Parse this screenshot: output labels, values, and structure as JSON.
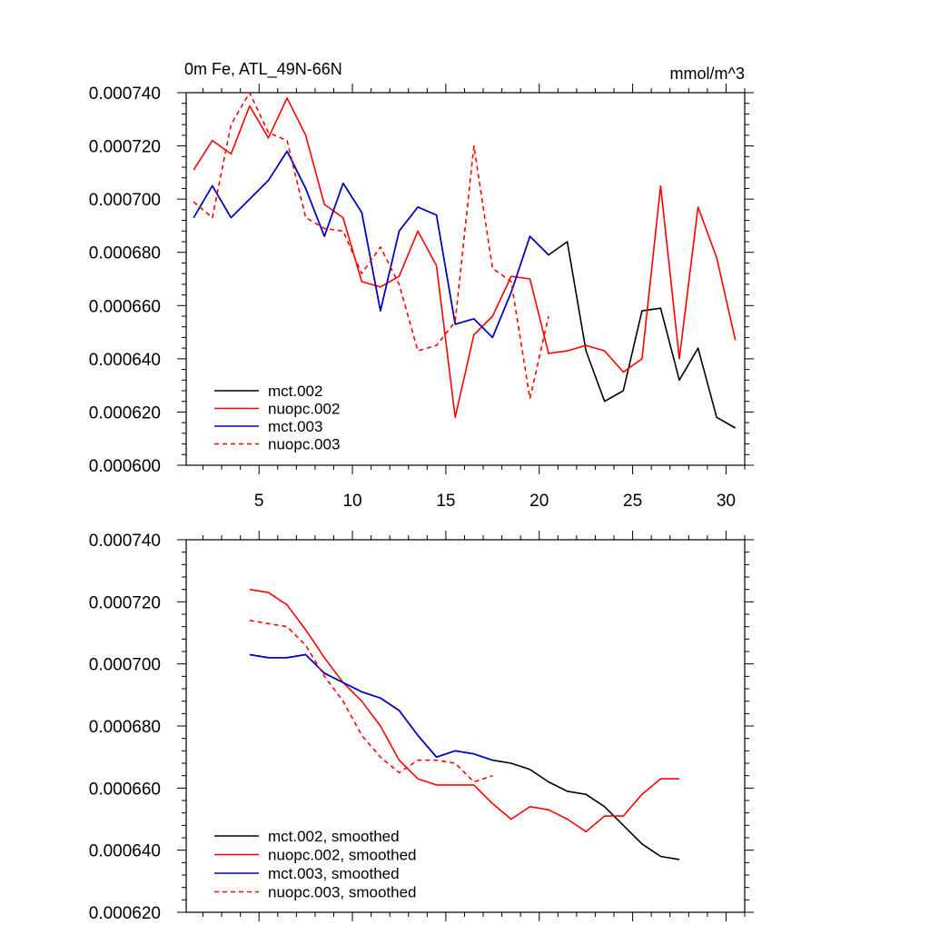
{
  "title_left": "0m Fe, ATL_49N-66N",
  "title_right": "mmol/m^3",
  "chart_data": [
    {
      "type": "line",
      "title": "0m Fe, ATL_49N-66N",
      "units": "mmol/m^3",
      "xlim": [
        1.1,
        31
      ],
      "ylim": [
        0.0006,
        0.00074
      ],
      "yticks": [
        0.0006,
        0.00062,
        0.00064,
        0.00066,
        0.00068,
        0.0007,
        0.00072,
        0.00074
      ],
      "ytick_labels": [
        "0.000600",
        "0.000620",
        "0.000640",
        "0.000660",
        "0.000680",
        "0.000700",
        "0.000720",
        "0.000740"
      ],
      "xticks": [
        5,
        10,
        15,
        20,
        25,
        30
      ],
      "xtick_labels": [
        "5",
        "10",
        "15",
        "20",
        "25",
        "30"
      ],
      "legend_position": "bottom-left",
      "series": [
        {
          "name": "mct.002",
          "color": "#000000",
          "dash": "solid",
          "x": [
            1.5,
            2.5,
            3.5,
            4.5,
            5.5,
            6.5,
            7.5,
            8.5,
            9.5,
            10.5,
            11.5,
            12.5,
            13.5,
            14.5,
            15.5,
            16.5,
            17.5,
            18.5,
            19.5,
            20.5,
            21.5,
            22.5,
            23.5,
            24.5,
            25.5,
            26.5,
            27.5,
            28.5,
            29.5,
            30.5
          ],
          "y": [
            0.000693,
            0.000705,
            0.000693,
            0.0007,
            0.000707,
            0.000718,
            0.000704,
            0.000686,
            0.000706,
            0.000695,
            0.000658,
            0.000688,
            0.000697,
            0.000694,
            0.000653,
            0.000655,
            0.000648,
            0.000665,
            0.000686,
            0.000679,
            0.000684,
            0.000643,
            0.000624,
            0.000628,
            0.000658,
            0.000659,
            0.000632,
            0.000644,
            0.000618,
            0.000614
          ]
        },
        {
          "name": "nuopc.002",
          "color": "#ff0000",
          "dash": "solid",
          "x": [
            1.5,
            2.5,
            3.5,
            4.5,
            5.5,
            6.5,
            7.5,
            8.5,
            9.5,
            10.5,
            11.5,
            12.5,
            13.5,
            14.5,
            15.5,
            16.5,
            17.5,
            18.5,
            19.5,
            20.5,
            21.5,
            22.5,
            23.5,
            24.5,
            25.5,
            26.5,
            27.5,
            28.5,
            29.5,
            30.5
          ],
          "y": [
            0.000711,
            0.000722,
            0.000717,
            0.000735,
            0.000723,
            0.000738,
            0.000724,
            0.000698,
            0.000693,
            0.000669,
            0.000667,
            0.000671,
            0.000688,
            0.000675,
            0.000618,
            0.000649,
            0.000656,
            0.000671,
            0.00067,
            0.000642,
            0.000643,
            0.000645,
            0.000643,
            0.000635,
            0.00064,
            0.000705,
            0.00064,
            0.000697,
            0.000678,
            0.000647
          ]
        },
        {
          "name": "mct.003",
          "color": "#0000cc",
          "dash": "solid",
          "x": [
            1.5,
            2.5,
            3.5,
            4.5,
            5.5,
            6.5,
            7.5,
            8.5,
            9.5,
            10.5,
            11.5,
            12.5,
            13.5,
            14.5,
            15.5,
            16.5,
            17.5,
            18.5,
            19.5,
            20.5
          ],
          "y": [
            0.000693,
            0.000705,
            0.000693,
            0.0007,
            0.000707,
            0.000718,
            0.000704,
            0.000686,
            0.000706,
            0.000695,
            0.000658,
            0.000688,
            0.000697,
            0.000694,
            0.000653,
            0.000655,
            0.000648,
            0.000665,
            0.000686,
            0.000679
          ]
        },
        {
          "name": "nuopc.003",
          "color": "#ff0000",
          "dash": "dashed",
          "x": [
            1.5,
            2.5,
            3.5,
            4.5,
            5.5,
            6.5,
            7.5,
            8.5,
            9.5,
            10.5,
            11.5,
            12.5,
            13.5,
            14.5,
            15.5,
            16.5,
            17.5,
            18.5,
            19.5,
            20.5
          ],
          "y": [
            0.000699,
            0.000693,
            0.000728,
            0.00074,
            0.000725,
            0.000722,
            0.000693,
            0.000689,
            0.000688,
            0.000672,
            0.000682,
            0.000668,
            0.000643,
            0.000645,
            0.000654,
            0.00072,
            0.000674,
            0.000669,
            0.000625,
            0.000656
          ]
        }
      ]
    },
    {
      "type": "line",
      "xlim": [
        1.1,
        31
      ],
      "ylim": [
        0.00062,
        0.00074
      ],
      "yticks": [
        0.00062,
        0.00064,
        0.00066,
        0.00068,
        0.0007,
        0.00072,
        0.00074
      ],
      "ytick_labels": [
        "0.000620",
        "0.000640",
        "0.000660",
        "0.000680",
        "0.000700",
        "0.000720",
        "0.000740"
      ],
      "xticks": [
        5,
        10,
        15,
        20,
        25,
        30
      ],
      "legend_position": "bottom-left",
      "series": [
        {
          "name": "mct.002, smoothed",
          "color": "#000000",
          "dash": "solid",
          "x": [
            4.5,
            5.5,
            6.5,
            7.5,
            8.5,
            9.5,
            10.5,
            11.5,
            12.5,
            13.5,
            14.5,
            15.5,
            16.5,
            17.5,
            18.5,
            19.5,
            20.5,
            21.5,
            22.5,
            23.5,
            24.5,
            25.5,
            26.5,
            27.5
          ],
          "y": [
            0.000703,
            0.000702,
            0.000702,
            0.000703,
            0.000697,
            0.000694,
            0.000691,
            0.000689,
            0.000685,
            0.000677,
            0.00067,
            0.000672,
            0.000671,
            0.000669,
            0.000668,
            0.000666,
            0.000662,
            0.000659,
            0.000658,
            0.000654,
            0.000648,
            0.000642,
            0.000638,
            0.000637
          ]
        },
        {
          "name": "nuopc.002, smoothed",
          "color": "#ff0000",
          "dash": "solid",
          "x": [
            4.5,
            5.5,
            6.5,
            7.5,
            8.5,
            9.5,
            10.5,
            11.5,
            12.5,
            13.5,
            14.5,
            15.5,
            16.5,
            17.5,
            18.5,
            19.5,
            20.5,
            21.5,
            22.5,
            23.5,
            24.5,
            25.5,
            26.5,
            27.5
          ],
          "y": [
            0.000724,
            0.000723,
            0.000719,
            0.000711,
            0.000702,
            0.000694,
            0.000688,
            0.00068,
            0.000669,
            0.000663,
            0.000661,
            0.000661,
            0.000661,
            0.000655,
            0.00065,
            0.000654,
            0.000653,
            0.00065,
            0.000646,
            0.000651,
            0.000651,
            0.000658,
            0.000663,
            0.000663
          ]
        },
        {
          "name": "mct.003, smoothed",
          "color": "#0000cc",
          "dash": "solid",
          "x": [
            4.5,
            5.5,
            6.5,
            7.5,
            8.5,
            9.5,
            10.5,
            11.5,
            12.5,
            13.5,
            14.5,
            15.5,
            16.5,
            17.5
          ],
          "y": [
            0.000703,
            0.000702,
            0.000702,
            0.000703,
            0.000697,
            0.000694,
            0.000691,
            0.000689,
            0.000685,
            0.000677,
            0.00067,
            0.000672,
            0.000671,
            0.000669
          ]
        },
        {
          "name": "nuopc.003, smoothed",
          "color": "#ff0000",
          "dash": "dashed",
          "x": [
            4.5,
            5.5,
            6.5,
            7.5,
            8.5,
            9.5,
            10.5,
            11.5,
            12.5,
            13.5,
            14.5,
            15.5,
            16.5,
            17.5
          ],
          "y": [
            0.000714,
            0.000713,
            0.000712,
            0.000706,
            0.000696,
            0.000688,
            0.000677,
            0.00067,
            0.000665,
            0.000669,
            0.000669,
            0.000668,
            0.000662,
            0.000664
          ]
        }
      ]
    }
  ]
}
